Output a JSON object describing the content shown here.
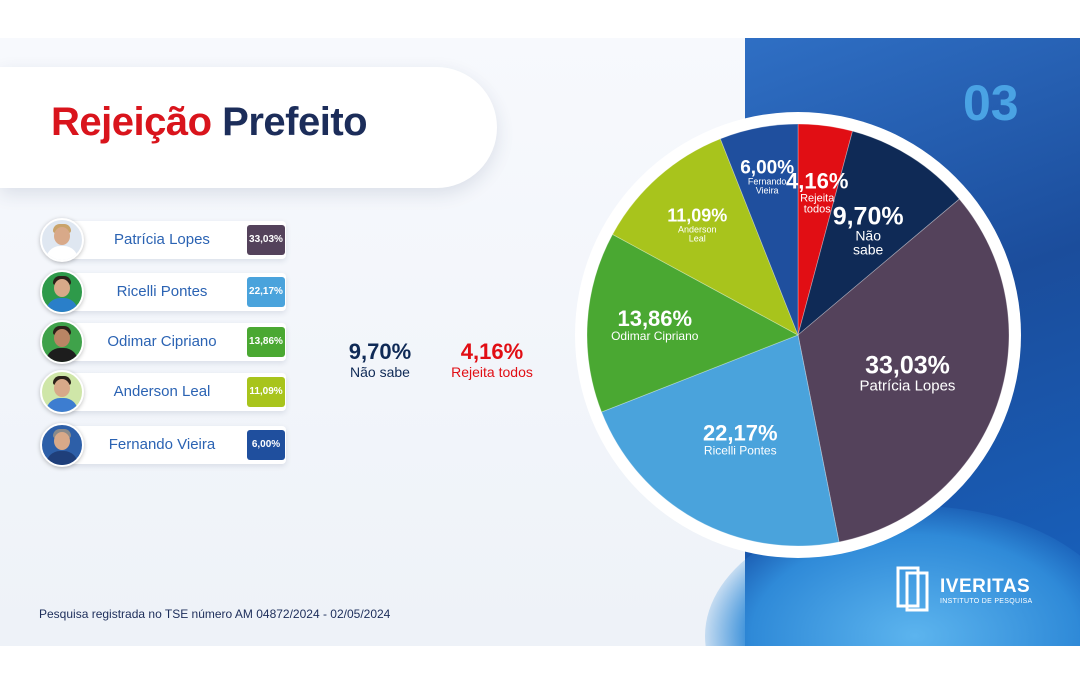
{
  "title": {
    "part1": "Rejeição",
    "part2": "Prefeito"
  },
  "page_number": "03",
  "colors": {
    "patricia": "#54425b",
    "ricelli": "#4aa3dc",
    "odimar": "#4aa832",
    "anderson": "#a8c41c",
    "fernando": "#1f4f9e",
    "rejeita": "#e10e14",
    "nao_sabe": "#0f2a56"
  },
  "candidates": [
    {
      "name": "Patrícia Lopes",
      "pct": "33,03%",
      "avatar_icon": "woman-portrait-icon",
      "color_key": "patricia"
    },
    {
      "name": "Ricelli Pontes",
      "pct": "22,17%",
      "avatar_icon": "man-portrait-icon",
      "color_key": "ricelli"
    },
    {
      "name": "Odimar Cipriano",
      "pct": "13,86%",
      "avatar_icon": "man-portrait-icon",
      "color_key": "odimar"
    },
    {
      "name": "Anderson Leal",
      "pct": "11,09%",
      "avatar_icon": "man-portrait-icon",
      "color_key": "anderson"
    },
    {
      "name": "Fernando Vieira",
      "pct": "6,00%",
      "avatar_icon": "man-portrait-icon",
      "color_key": "fernando"
    }
  ],
  "extra_stats": [
    {
      "value": "9,70%",
      "label": "Não sabe",
      "color_key": "nao_sabe"
    },
    {
      "value": "4,16%",
      "label": "Rejeita todos",
      "color_key": "rejeita"
    }
  ],
  "footer_note": "Pesquisa registrada no TSE  número  AM 04872/2024 - 02/05/2024",
  "logo": {
    "brand": "IVERITAS",
    "subtitle": "INSTITUTO DE PESQUISA"
  },
  "chart_data": {
    "type": "pie",
    "title": "Rejeição Prefeito",
    "legend": "none",
    "start_angle_deg": 0,
    "slices": [
      {
        "label": "Rejeita todos",
        "value": 4.16,
        "value_label": "4,16%",
        "color": "#e10e14"
      },
      {
        "label": "Não sabe",
        "value": 9.7,
        "value_label": "9,70%",
        "color": "#0f2a56"
      },
      {
        "label": "Patrícia Lopes",
        "value": 33.03,
        "value_label": "33,03%",
        "color": "#54425b"
      },
      {
        "label": "Ricelli Pontes",
        "value": 22.17,
        "value_label": "22,17%",
        "color": "#4aa3dc"
      },
      {
        "label": "Odimar Cipriano",
        "value": 13.86,
        "value_label": "13,86%",
        "color": "#4aa832"
      },
      {
        "label": "Anderson Leal",
        "value": 11.09,
        "value_label": "11,09%",
        "color": "#a8c41c"
      },
      {
        "label": "Fernando Vieira",
        "value": 6.0,
        "value_label": "6,00%",
        "color": "#1f4f9e"
      }
    ]
  }
}
